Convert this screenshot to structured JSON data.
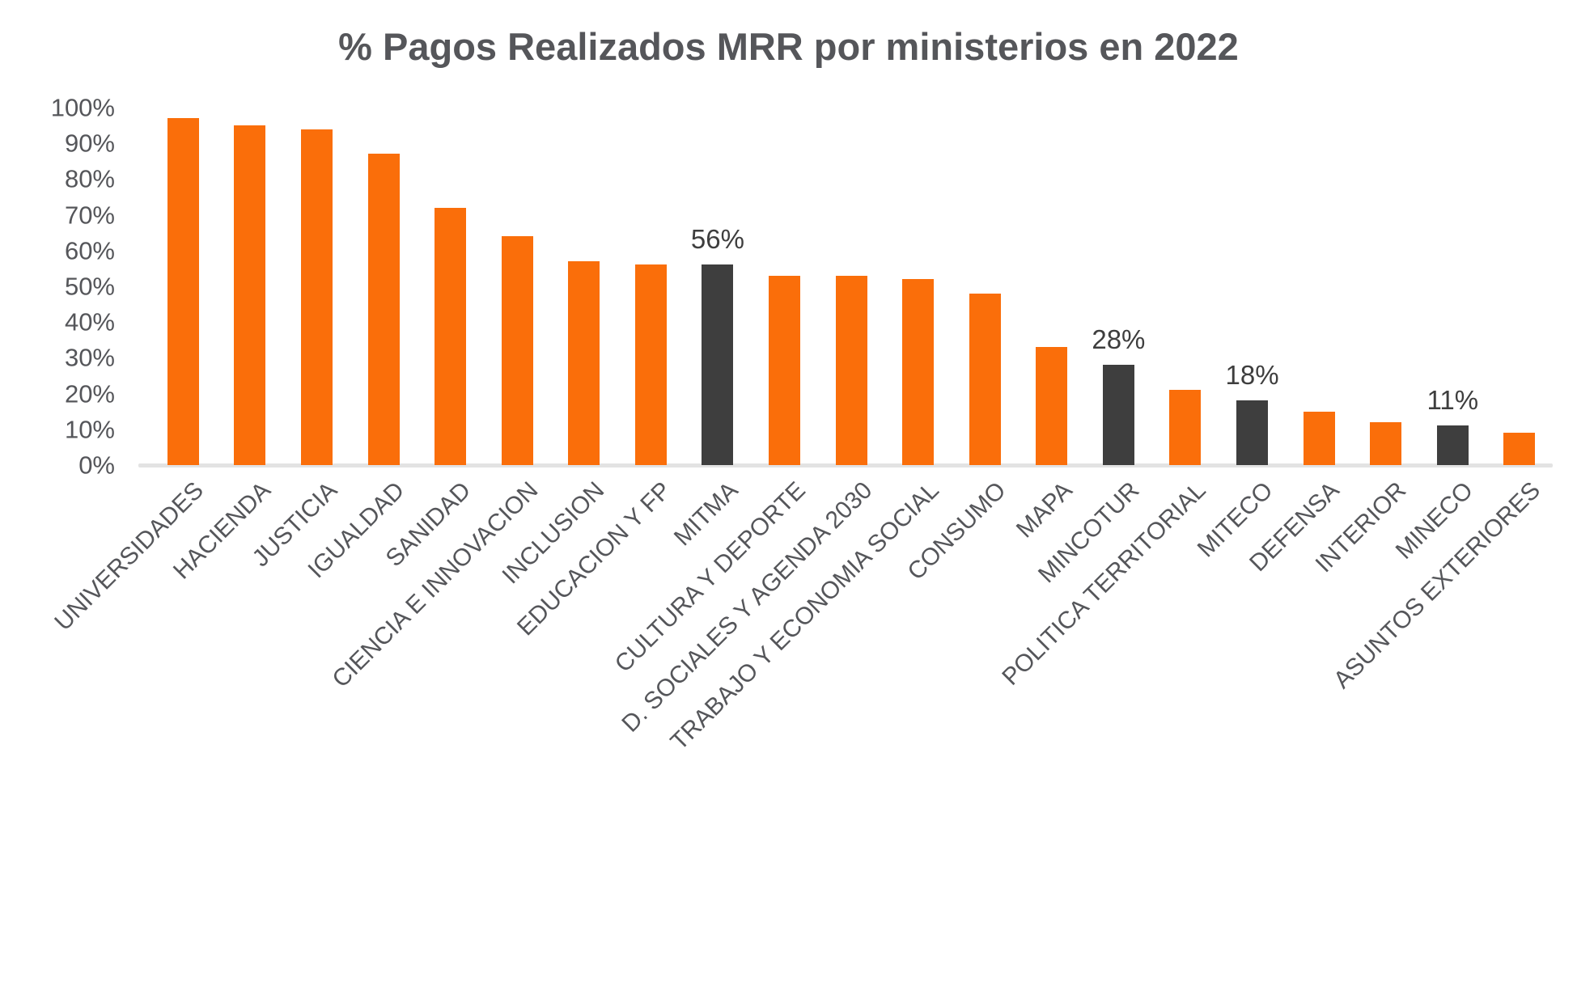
{
  "chart_data": {
    "type": "bar",
    "title": "% Pagos Realizados MRR por ministerios en 2022",
    "xlabel": "",
    "ylabel": "",
    "ylim": [
      0,
      100
    ],
    "grid": "off",
    "legend": "none",
    "ytick_labels": [
      "0%",
      "10%",
      "20%",
      "30%",
      "40%",
      "50%",
      "60%",
      "70%",
      "80%",
      "90%",
      "100%"
    ],
    "categories": [
      "UNIVERSIDADES",
      "HACIENDA",
      "JUSTICIA",
      "IGUALDAD",
      "SANIDAD",
      "CIENCIA E INNOVACION",
      "INCLUSION",
      "EDUCACION Y FP",
      "MITMA",
      "CULTURA Y DEPORTE",
      "D. SOCIALES Y AGENDA 2030",
      "TRABAJO Y ECONOMIA SOCIAL",
      "CONSUMO",
      "MAPA",
      "MINCOTUR",
      "POLITICA TERRITORIAL",
      "MITECO",
      "DEFENSA",
      "INTERIOR",
      "MINECO",
      "ASUNTOS EXTERIORES"
    ],
    "values": [
      97,
      95,
      94,
      87,
      72,
      64,
      57,
      56,
      56,
      53,
      53,
      52,
      48,
      33,
      28,
      21,
      18,
      15,
      12,
      11,
      9
    ],
    "highlighted": [
      {
        "index": 8,
        "label": "56%"
      },
      {
        "index": 14,
        "label": "28%"
      },
      {
        "index": 16,
        "label": "18%"
      },
      {
        "index": 19,
        "label": "11%"
      }
    ],
    "colors": {
      "bar": "#FA6E0A",
      "bar_highlight": "#3E3E3E",
      "title_text": "#55565A",
      "axis_text": "#55565A",
      "value_label_text": "#3E3E3E",
      "baseline": "#E3E3E3"
    }
  }
}
